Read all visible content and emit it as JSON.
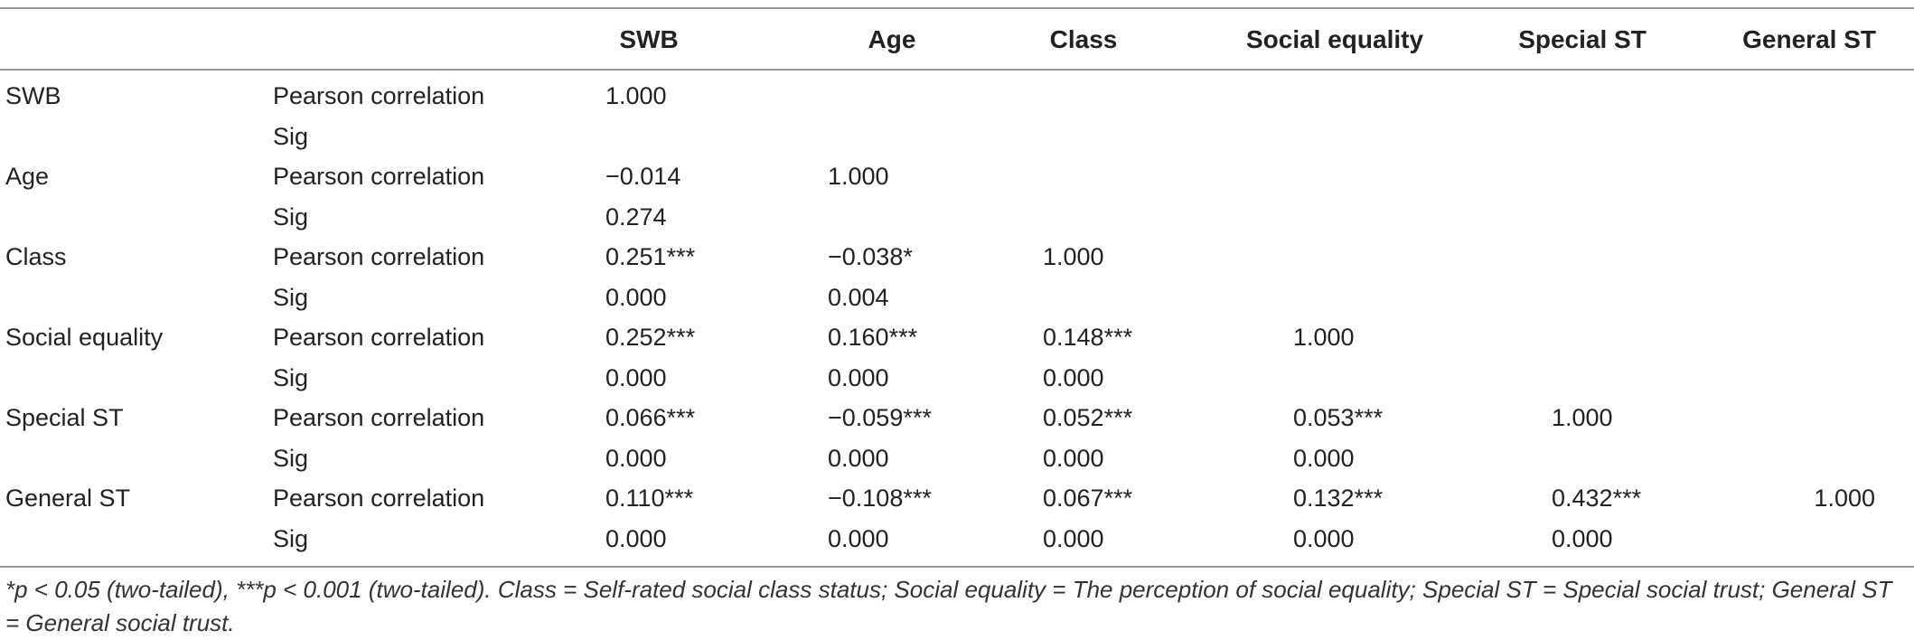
{
  "table": {
    "columns": [
      "",
      "",
      "SWB",
      "Age",
      "Class",
      "Social equality",
      "Special ST",
      "General ST"
    ],
    "rows": [
      {
        "variable": "SWB",
        "stat": "Pearson correlation",
        "values": [
          "1.000",
          "",
          "",
          "",
          "",
          ""
        ]
      },
      {
        "variable": "",
        "stat": "Sig",
        "values": [
          "",
          "",
          "",
          "",
          "",
          ""
        ]
      },
      {
        "variable": "Age",
        "stat": "Pearson correlation",
        "values": [
          "−0.014",
          "1.000",
          "",
          "",
          "",
          ""
        ]
      },
      {
        "variable": "",
        "stat": "Sig",
        "values": [
          "0.274",
          "",
          "",
          "",
          "",
          ""
        ]
      },
      {
        "variable": "Class",
        "stat": "Pearson correlation",
        "values": [
          "0.251***",
          "−0.038*",
          "1.000",
          "",
          "",
          ""
        ]
      },
      {
        "variable": "",
        "stat": "Sig",
        "values": [
          "0.000",
          "0.004",
          "",
          "",
          "",
          ""
        ]
      },
      {
        "variable": "Social equality",
        "stat": "Pearson correlation",
        "values": [
          "0.252***",
          "0.160***",
          "0.148***",
          "1.000",
          "",
          ""
        ]
      },
      {
        "variable": "",
        "stat": "Sig",
        "values": [
          "0.000",
          "0.000",
          "0.000",
          "",
          "",
          ""
        ]
      },
      {
        "variable": "Special ST",
        "stat": "Pearson correlation",
        "values": [
          "0.066***",
          "−0.059***",
          "0.052***",
          "0.053***",
          "1.000",
          ""
        ]
      },
      {
        "variable": "",
        "stat": "Sig",
        "values": [
          "0.000",
          "0.000",
          "0.000",
          "0.000",
          "",
          ""
        ]
      },
      {
        "variable": "General ST",
        "stat": "Pearson correlation",
        "values": [
          "0.110***",
          "−0.108***",
          "0.067***",
          "0.132***",
          "0.432***",
          "1.000"
        ]
      },
      {
        "variable": "",
        "stat": "Sig",
        "values": [
          "0.000",
          "0.000",
          "0.000",
          "0.000",
          "0.000",
          ""
        ]
      }
    ]
  },
  "footnote": "*p < 0.05 (two-tailed), ***p < 0.001 (two-tailed). Class = Self-rated social class status; Social equality = The perception of social equality; Special ST = Special social trust; General ST = General social trust."
}
